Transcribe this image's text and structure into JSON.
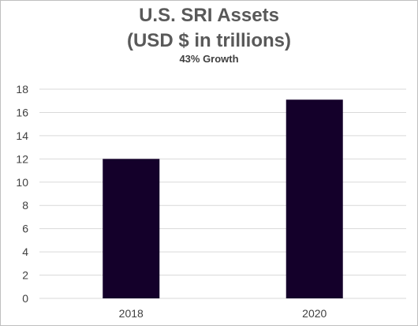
{
  "chart_data": {
    "type": "bar",
    "title_line1": "U.S. SRI Assets",
    "title_line2": "(USD $ in trillions)",
    "subtitle": "43% Growth",
    "categories": [
      "2018",
      "2020"
    ],
    "values": [
      12.0,
      17.1
    ],
    "ylim": [
      0,
      18
    ],
    "yticks": [
      "0",
      "2",
      "4",
      "6",
      "8",
      "10",
      "12",
      "14",
      "16",
      "18"
    ],
    "grid": true,
    "legend": "none",
    "bar_color": "#14002a",
    "grid_color": "#d9d9d9"
  }
}
